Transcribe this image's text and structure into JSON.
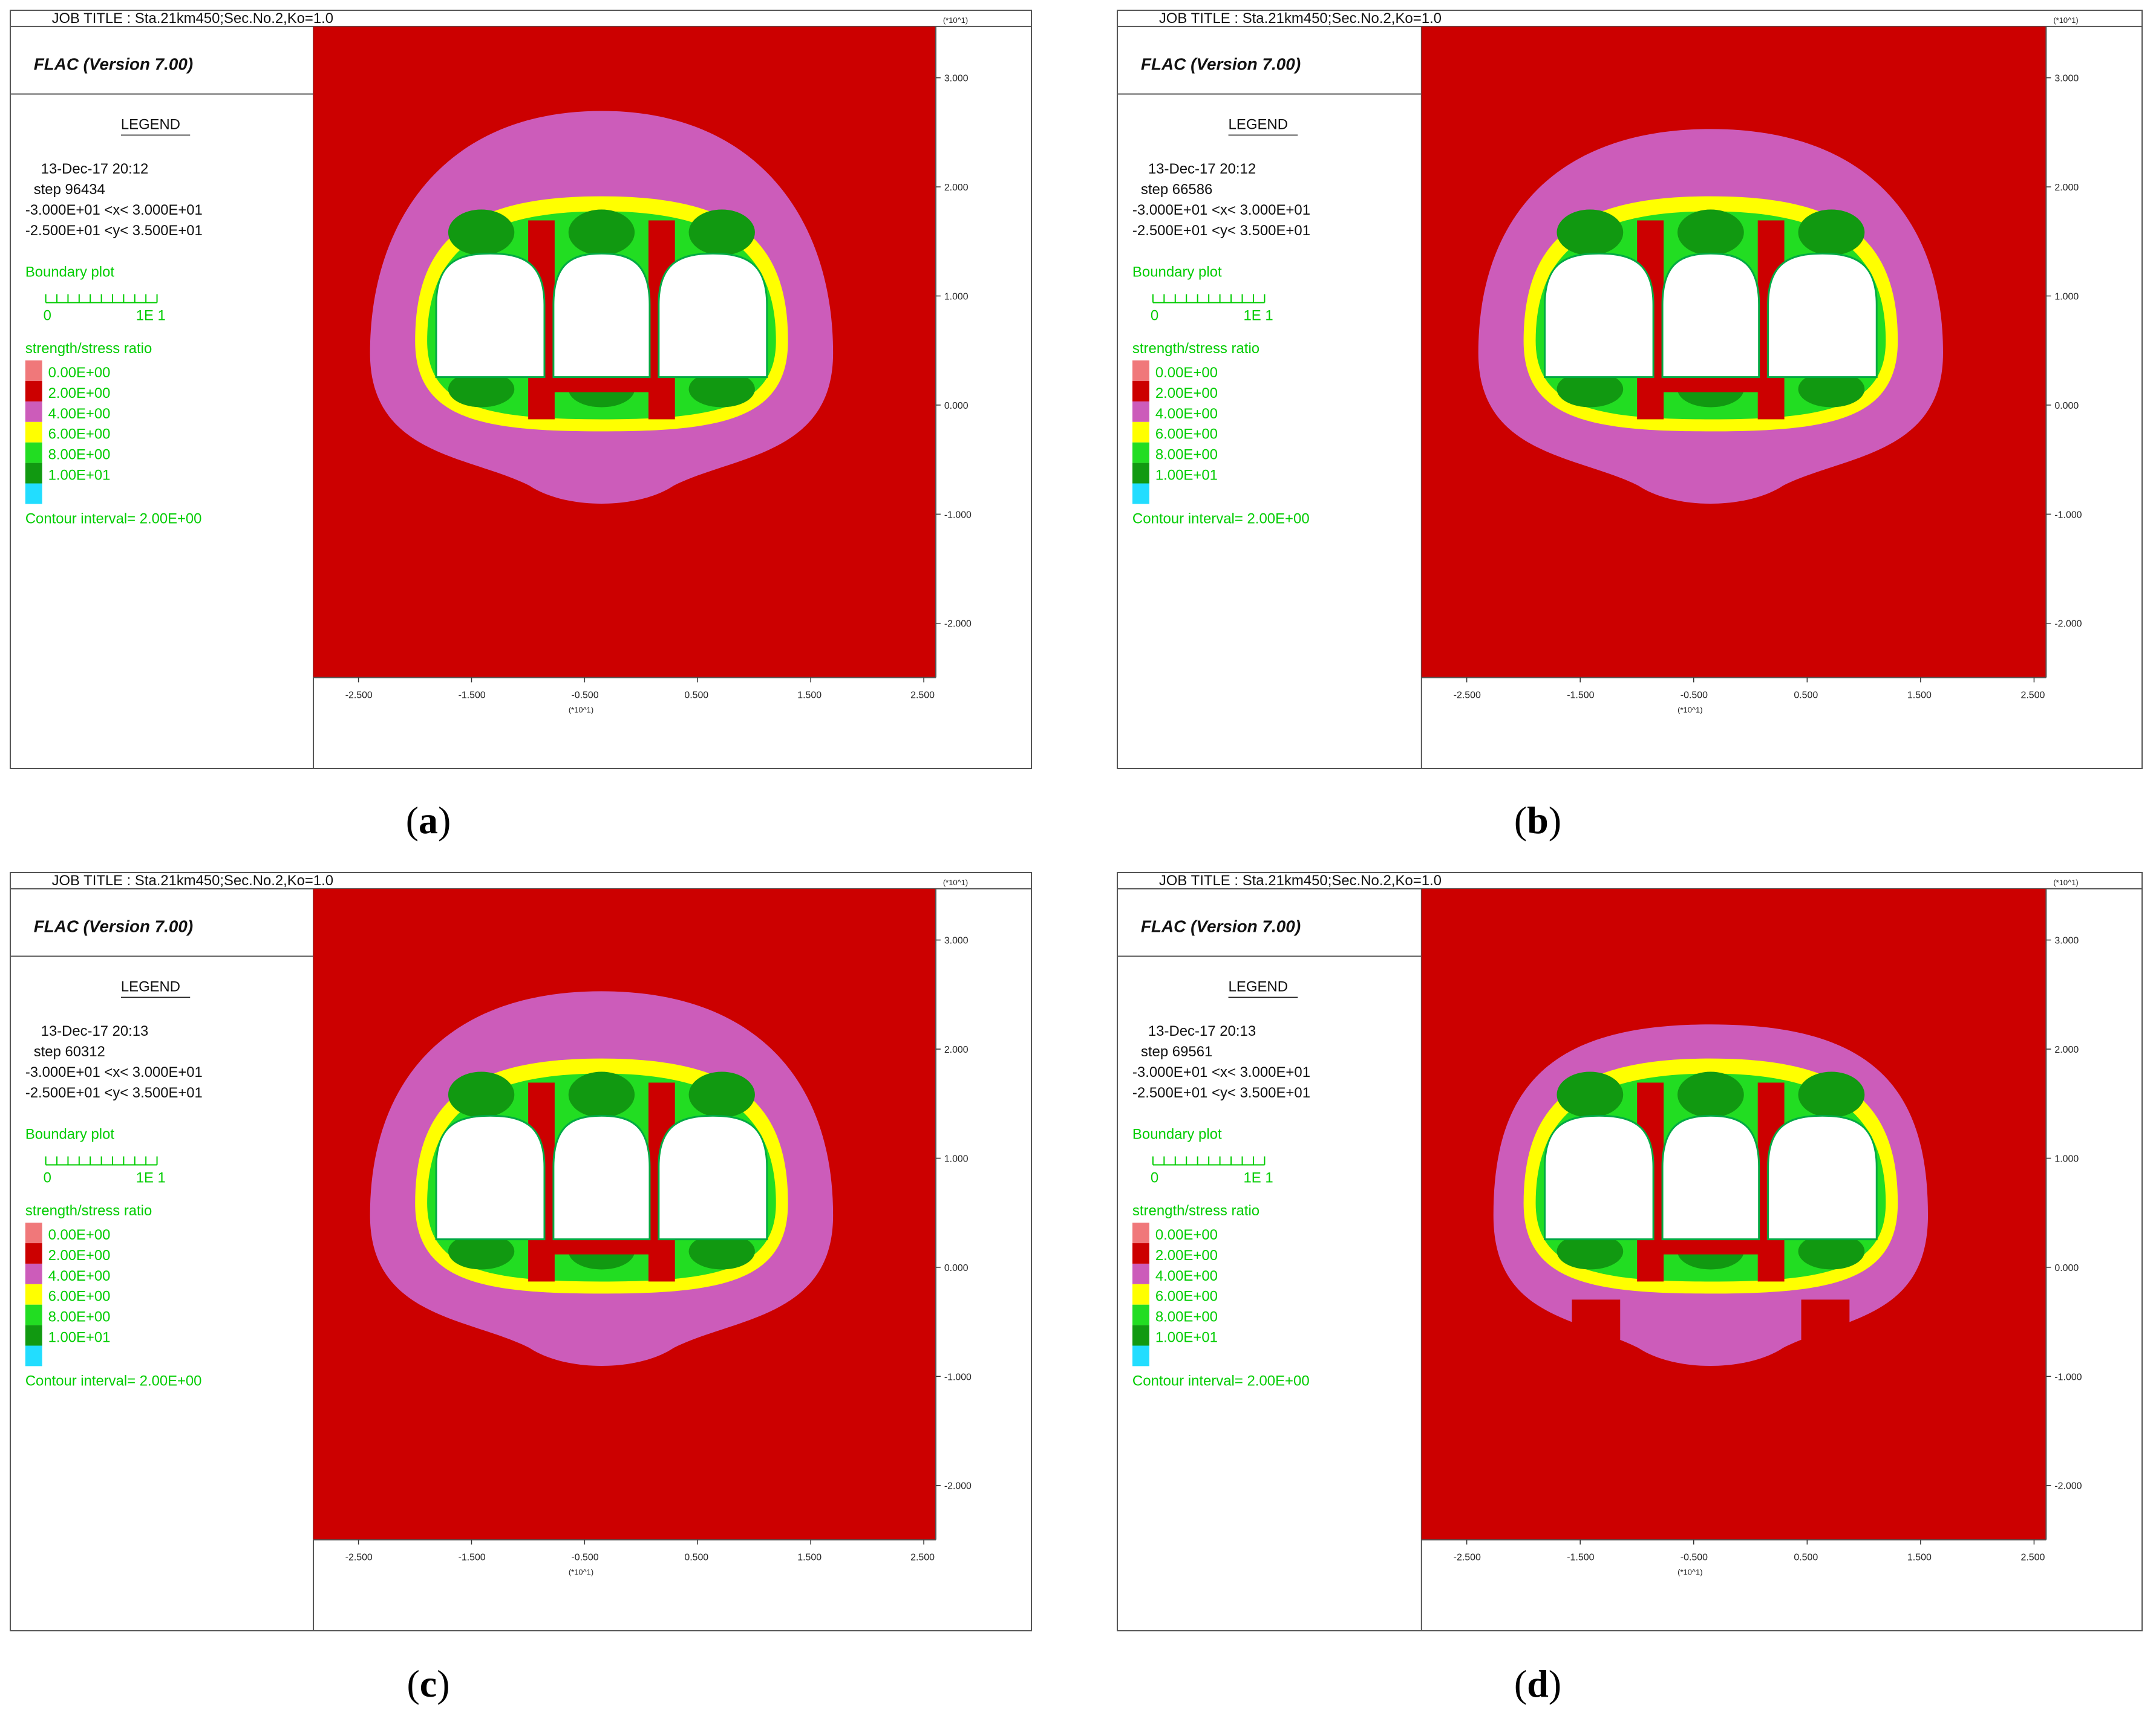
{
  "panels": [
    {
      "caption_letter": "a",
      "job_title": "JOB TITLE : Sta.21km450;Sec.No.2,Ko=1.0",
      "program": "FLAC (Version 7.00)",
      "legend_heading": "LEGEND",
      "date_time": "13-Dec-17  20:12",
      "step": "step   96434",
      "x_range": "-3.000E+01 <x<  3.000E+01",
      "y_range": "-2.500E+01 <y<  3.500E+01",
      "boundary_label": "Boundary plot",
      "scale_left": "0",
      "scale_right": "1E  1",
      "ratio_title": "strength/stress ratio",
      "contour_interval": "Contour interval=  2.00E+00",
      "variant": 0
    },
    {
      "caption_letter": "b",
      "job_title": "JOB TITLE : Sta.21km450;Sec.No.2,Ko=1.0",
      "program": "FLAC (Version 7.00)",
      "legend_heading": "LEGEND",
      "date_time": "13-Dec-17  20:12",
      "step": "step   66586",
      "x_range": "-3.000E+01 <x<  3.000E+01",
      "y_range": "-2.500E+01 <y<  3.500E+01",
      "boundary_label": "Boundary plot",
      "scale_left": "0",
      "scale_right": "1E  1",
      "ratio_title": "strength/stress ratio",
      "contour_interval": "Contour interval=  2.00E+00",
      "variant": 1
    },
    {
      "caption_letter": "c",
      "job_title": "JOB TITLE : Sta.21km450;Sec.No.2,Ko=1.0",
      "program": "FLAC (Version 7.00)",
      "legend_heading": "LEGEND",
      "date_time": "13-Dec-17  20:13",
      "step": "step   60312",
      "x_range": "-3.000E+01 <x<  3.000E+01",
      "y_range": "-2.500E+01 <y<  3.500E+01",
      "boundary_label": "Boundary plot",
      "scale_left": "0",
      "scale_right": "1E  1",
      "ratio_title": "strength/stress ratio",
      "contour_interval": "Contour interval=  2.00E+00",
      "variant": 2
    },
    {
      "caption_letter": "d",
      "job_title": "JOB TITLE : Sta.21km450;Sec.No.2,Ko=1.0",
      "program": "FLAC (Version 7.00)",
      "legend_heading": "LEGEND",
      "date_time": "13-Dec-17  20:13",
      "step": "step   69561",
      "x_range": "-3.000E+01 <x<  3.000E+01",
      "y_range": "-2.500E+01 <y<  3.500E+01",
      "boundary_label": "Boundary plot",
      "scale_left": "0",
      "scale_right": "1E  1",
      "ratio_title": "strength/stress ratio",
      "contour_interval": "Contour interval=  2.00E+00",
      "variant": 3
    }
  ],
  "contour_levels": [
    {
      "label": "0.00E+00",
      "color": "#f0787a"
    },
    {
      "label": "2.00E+00",
      "color": "#cc0000"
    },
    {
      "label": "4.00E+00",
      "color": "#cc5cba"
    },
    {
      "label": "6.00E+00",
      "color": "#ffff00"
    },
    {
      "label": "8.00E+00",
      "color": "#22dd22"
    },
    {
      "label": "1.00E+01",
      "color": "#119911"
    },
    {
      "label": "",
      "color": "#22ddff"
    }
  ],
  "axis_x_ticks": [
    "-2.500",
    "-1.500",
    "-0.500",
    "0.500",
    "1.500",
    "2.500"
  ],
  "axis_y_ticks": [
    "3.000",
    "2.000",
    "1.000",
    "0.000",
    "-1.000",
    "-2.000"
  ],
  "axis_multiplier": "(*10^1)",
  "colors": {
    "text_green": "#00cc00",
    "background_red": "#cc0000",
    "purple": "#cc5cba",
    "yellow": "#ffff00",
    "green": "#22dd22",
    "dark_green": "#119911",
    "tunnel_outline": "#00aa44"
  }
}
